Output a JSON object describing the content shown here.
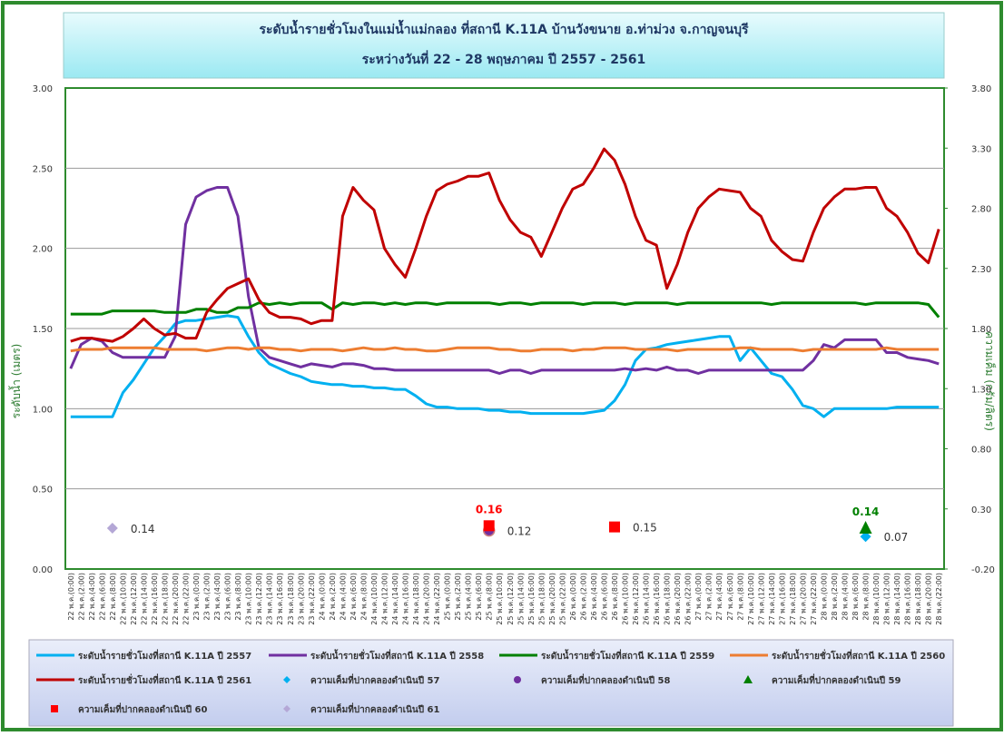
{
  "chart_data": {
    "type": "line",
    "title": "ระดับน้ำรายชั่วโมงในแม่น้ำแม่กลอง ที่สถานี K.11A บ้านวังขนาย อ.ท่าม่วง จ.กาญจนบุรี",
    "subtitle": "ระหว่างวันที่ 22 - 28 พฤษภาคม  ปี 2557 - 2561",
    "ylabel": "ระดับน้ำ (เมตร)",
    "y2label": "ความเค็ม (กรัม/ลิตร)",
    "ylim": [
      0,
      3
    ],
    "yticks": [
      {
        "value": 0,
        "label": "0.00"
      },
      {
        "value": 0.5,
        "label": "0.50"
      },
      {
        "value": 1,
        "label": "1.00"
      },
      {
        "value": 1.5,
        "label": "1.50"
      },
      {
        "value": 2,
        "label": "2.00"
      },
      {
        "value": 2.5,
        "label": "2.50"
      },
      {
        "value": 3,
        "label": "3.00"
      }
    ],
    "y2lim": [
      -0.2,
      3.8
    ],
    "y2ticks": [
      {
        "value": -0.2,
        "label": "-0.20"
      },
      {
        "value": 0.3,
        "label": "0.30"
      },
      {
        "value": 0.8,
        "label": "0.80"
      },
      {
        "value": 1.3,
        "label": "1.30"
      },
      {
        "value": 1.8,
        "label": "1.80"
      },
      {
        "value": 2.3,
        "label": "2.30"
      },
      {
        "value": 2.8,
        "label": "2.80"
      },
      {
        "value": 3.3,
        "label": "3.30"
      },
      {
        "value": 3.8,
        "label": "3.80"
      }
    ],
    "grid": true,
    "categories": [
      "22 พ.ค.(0:00)",
      "22 พ.ค.(2:00)",
      "22 พ.ค.(4:00)",
      "22 พ.ค.(6:00)",
      "22 พ.ค.(8:00)",
      "22 พ.ค.(10:00)",
      "22 พ.ค.(12:00)",
      "22 พ.ค.(14:00)",
      "22 พ.ค.(16:00)",
      "22 พ.ค.(18:00)",
      "22 พ.ค.(20:00)",
      "22 พ.ค.(22:00)",
      "23 พ.ค.(0:00)",
      "23 พ.ค.(2:00)",
      "23 พ.ค.(4:00)",
      "23 พ.ค.(6:00)",
      "23 พ.ค.(8:00)",
      "23 พ.ค.(10:00)",
      "23 พ.ค.(12:00)",
      "23 พ.ค.(14:00)",
      "23 พ.ค.(16:00)",
      "23 พ.ค.(18:00)",
      "23 พ.ค.(20:00)",
      "23 พ.ค.(22:00)",
      "24 พ.ค.(0:00)",
      "24 พ.ค.(2:00)",
      "24 พ.ค.(4:00)",
      "24 พ.ค.(6:00)",
      "24 พ.ค.(8:00)",
      "24 พ.ค.(10:00)",
      "24 พ.ค.(12:00)",
      "24 พ.ค.(14:00)",
      "24 พ.ค.(16:00)",
      "24 พ.ค.(18:00)",
      "24 พ.ค.(20:00)",
      "24 พ.ค.(22:00)",
      "25 พ.ค.(0:00)",
      "25 พ.ค.(2:00)",
      "25 พ.ค.(4:00)",
      "25 พ.ค.(6:00)",
      "25 พ.ค.(8:00)",
      "25 พ.ค.(10:00)",
      "25 พ.ค.(12:00)",
      "25 พ.ค.(14:00)",
      "25 พ.ค.(16:00)",
      "25 พ.ค.(18:00)",
      "25 พ.ค.(20:00)",
      "25 พ.ค.(22:00)",
      "26 พ.ค.(0:00)",
      "26 พ.ค.(2:00)",
      "26 พ.ค.(4:00)",
      "26 พ.ค.(6:00)",
      "26 พ.ค.(8:00)",
      "26 พ.ค.(10:00)",
      "26 พ.ค.(12:00)",
      "26 พ.ค.(14:00)",
      "26 พ.ค.(16:00)",
      "26 พ.ค.(18:00)",
      "26 พ.ค.(20:00)",
      "26 พ.ค.(22:00)",
      "27 พ.ค.(0:00)",
      "27 พ.ค.(2:00)",
      "27 พ.ค.(4:00)",
      "27 พ.ค.(6:00)",
      "27 พ.ค.(8:00)",
      "27 พ.ค.(10:00)",
      "27 พ.ค.(12:00)",
      "27 พ.ค.(14:00)",
      "27 พ.ค.(16:00)",
      "27 พ.ค.(18:00)",
      "27 พ.ค.(20:00)",
      "27 พ.ค.(22:00)",
      "28 พ.ค.(0:00)",
      "28 พ.ค.(2:00)",
      "28 พ.ค.(4:00)",
      "28 พ.ค.(6:00)",
      "28 พ.ค.(8:00)",
      "28 พ.ค.(10:00)",
      "28 พ.ค.(12:00)",
      "28 พ.ค.(14:00)",
      "28 พ.ค.(16:00)",
      "28 พ.ค.(18:00)",
      "28 พ.ค.(20:00)",
      "28 พ.ค.(22:00)"
    ],
    "series": [
      {
        "name": "ระดับน้ำรายชั่วโมงที่สถานี K.11A ปี 2557",
        "color": "#00b0f0",
        "values": [
          0.95,
          0.95,
          0.95,
          0.95,
          0.95,
          1.1,
          1.18,
          1.28,
          1.38,
          1.45,
          1.53,
          1.55,
          1.55,
          1.56,
          1.57,
          1.58,
          1.57,
          1.45,
          1.35,
          1.28,
          1.25,
          1.22,
          1.2,
          1.17,
          1.16,
          1.15,
          1.15,
          1.14,
          1.14,
          1.13,
          1.13,
          1.12,
          1.12,
          1.08,
          1.03,
          1.01,
          1.01,
          1.0,
          1.0,
          1.0,
          0.99,
          0.99,
          0.98,
          0.98,
          0.97,
          0.97,
          0.97,
          0.97,
          0.97,
          0.97,
          0.98,
          0.99,
          1.05,
          1.15,
          1.3,
          1.37,
          1.38,
          1.4,
          1.41,
          1.42,
          1.43,
          1.44,
          1.45,
          1.45,
          1.3,
          1.38,
          1.3,
          1.22,
          1.2,
          1.12,
          1.02,
          1.0,
          0.95,
          1.0,
          1.0,
          1.0,
          1.0,
          1.0,
          1.0,
          1.01,
          1.01,
          1.01,
          1.01,
          1.01
        ]
      },
      {
        "name": "ระดับน้ำรายชั่วโมงที่สถานี K.11A ปี 2558",
        "color": "#7030a0",
        "values": [
          1.25,
          1.4,
          1.44,
          1.42,
          1.35,
          1.32,
          1.32,
          1.32,
          1.32,
          1.32,
          1.45,
          2.15,
          2.32,
          2.36,
          2.38,
          2.38,
          2.2,
          1.7,
          1.38,
          1.32,
          1.3,
          1.28,
          1.26,
          1.28,
          1.27,
          1.26,
          1.28,
          1.28,
          1.27,
          1.25,
          1.25,
          1.24,
          1.24,
          1.24,
          1.24,
          1.24,
          1.24,
          1.24,
          1.24,
          1.24,
          1.24,
          1.22,
          1.24,
          1.24,
          1.22,
          1.24,
          1.24,
          1.24,
          1.24,
          1.24,
          1.24,
          1.24,
          1.24,
          1.25,
          1.24,
          1.25,
          1.24,
          1.26,
          1.24,
          1.24,
          1.22,
          1.24,
          1.24,
          1.24,
          1.24,
          1.24,
          1.24,
          1.24,
          1.24,
          1.24,
          1.24,
          1.3,
          1.4,
          1.38,
          1.43,
          1.43,
          1.43,
          1.43,
          1.35,
          1.35,
          1.32,
          1.31,
          1.3,
          1.28
        ]
      },
      {
        "name": "ระดับน้ำรายชั่วโมงที่สถานี K.11A ปี 2559",
        "color": "#008000",
        "values": [
          1.59,
          1.59,
          1.59,
          1.59,
          1.61,
          1.61,
          1.61,
          1.61,
          1.61,
          1.6,
          1.6,
          1.6,
          1.62,
          1.62,
          1.6,
          1.6,
          1.63,
          1.63,
          1.66,
          1.65,
          1.66,
          1.65,
          1.66,
          1.66,
          1.66,
          1.62,
          1.66,
          1.65,
          1.66,
          1.66,
          1.65,
          1.66,
          1.65,
          1.66,
          1.66,
          1.65,
          1.66,
          1.66,
          1.66,
          1.66,
          1.66,
          1.65,
          1.66,
          1.66,
          1.65,
          1.66,
          1.66,
          1.66,
          1.66,
          1.65,
          1.66,
          1.66,
          1.66,
          1.65,
          1.66,
          1.66,
          1.66,
          1.66,
          1.65,
          1.66,
          1.66,
          1.66,
          1.66,
          1.66,
          1.66,
          1.66,
          1.66,
          1.65,
          1.66,
          1.66,
          1.66,
          1.66,
          1.66,
          1.66,
          1.66,
          1.66,
          1.65,
          1.66,
          1.66,
          1.66,
          1.66,
          1.66,
          1.65,
          1.57
        ]
      },
      {
        "name": "ระดับน้ำรายชั่วโมงที่สถานี K.11A ปี 2560",
        "color": "#ed7d31",
        "values": [
          1.36,
          1.37,
          1.37,
          1.37,
          1.38,
          1.38,
          1.38,
          1.38,
          1.38,
          1.37,
          1.37,
          1.37,
          1.37,
          1.36,
          1.37,
          1.38,
          1.38,
          1.37,
          1.38,
          1.38,
          1.37,
          1.37,
          1.36,
          1.37,
          1.37,
          1.37,
          1.36,
          1.37,
          1.38,
          1.37,
          1.37,
          1.38,
          1.37,
          1.37,
          1.36,
          1.36,
          1.37,
          1.38,
          1.38,
          1.38,
          1.38,
          1.37,
          1.37,
          1.36,
          1.36,
          1.37,
          1.37,
          1.37,
          1.36,
          1.37,
          1.37,
          1.38,
          1.38,
          1.38,
          1.37,
          1.37,
          1.37,
          1.37,
          1.36,
          1.37,
          1.37,
          1.37,
          1.37,
          1.37,
          1.38,
          1.38,
          1.37,
          1.37,
          1.37,
          1.37,
          1.36,
          1.37,
          1.37,
          1.37,
          1.37,
          1.37,
          1.37,
          1.37,
          1.38,
          1.37,
          1.37,
          1.37,
          1.37,
          1.37
        ]
      },
      {
        "name": "ระดับน้ำรายชั่วโมงที่สถานี K.11A ปี 2561",
        "color": "#c00000",
        "values": [
          1.42,
          1.44,
          1.44,
          1.43,
          1.42,
          1.45,
          1.5,
          1.56,
          1.5,
          1.46,
          1.47,
          1.44,
          1.44,
          1.6,
          1.68,
          1.75,
          1.78,
          1.81,
          1.68,
          1.6,
          1.57,
          1.57,
          1.56,
          1.53,
          1.55,
          1.55,
          2.2,
          2.38,
          2.3,
          2.24,
          2.0,
          1.9,
          1.82,
          2.0,
          2.2,
          2.36,
          2.4,
          2.42,
          2.45,
          2.45,
          2.47,
          2.3,
          2.18,
          2.1,
          2.07,
          1.95,
          2.1,
          2.25,
          2.37,
          2.4,
          2.5,
          2.62,
          2.55,
          2.4,
          2.2,
          2.05,
          2.02,
          1.75,
          1.9,
          2.1,
          2.25,
          2.32,
          2.37,
          2.36,
          2.35,
          2.25,
          2.2,
          2.05,
          1.98,
          1.93,
          1.92,
          2.1,
          2.25,
          2.32,
          2.37,
          2.37,
          2.38,
          2.38,
          2.25,
          2.2,
          2.1,
          1.97,
          1.91,
          2.12
        ]
      },
      {
        "name": "ความเค็มที่ปากคลองดำเนินปี 57",
        "color": "#00b0f0",
        "type": "scatter",
        "marker": "diamond",
        "axis": "y2",
        "x": [
          "28 พ.ค.(8:00)"
        ],
        "values": [
          0.07
        ]
      },
      {
        "name": "ความเค็มที่ปากคลองดำเนินปี 58",
        "color": "#7030a0",
        "type": "scatter",
        "marker": "circle",
        "axis": "y2",
        "x": [
          "25 พ.ค.(8:00)"
        ],
        "values": [
          0.12
        ]
      },
      {
        "name": "ความเค็มที่ปากคลองดำเนินปี 59",
        "color": "#008000",
        "type": "scatter",
        "marker": "triangle",
        "axis": "y2",
        "x": [
          "28 พ.ค.(8:00)"
        ],
        "values": [
          0.14
        ]
      },
      {
        "name": "ความเค็มที่ปากคลองดำเนินปี 60",
        "color": "#ff0000",
        "type": "scatter",
        "marker": "square",
        "axis": "y2",
        "x": [
          "25 พ.ค.(8:00)",
          "26 พ.ค.(8:00)"
        ],
        "values": [
          0.16,
          0.15
        ]
      },
      {
        "name": "ความเค็มที่ปากคลองดำเนินปี 61",
        "color": "#b4a7d6",
        "type": "scatter",
        "marker": "diamond",
        "axis": "y2",
        "x": [
          "22 พ.ค.(8:00)"
        ],
        "values": [
          0.14
        ]
      }
    ]
  }
}
